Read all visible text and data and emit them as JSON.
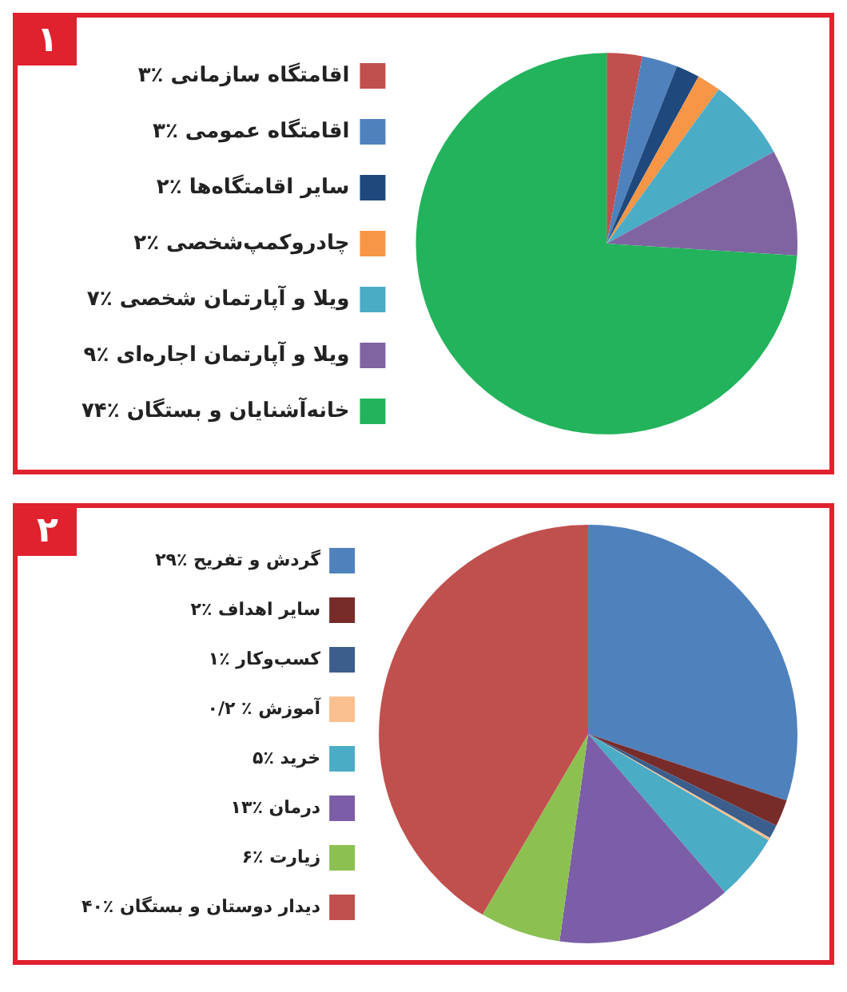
{
  "chart_data": [
    {
      "type": "pie",
      "title": "۱",
      "legend": "left",
      "categories": [
        "۳٪ اقامتگاه سازمانی",
        "۳٪ اقامتگاه عمومی",
        "۲٪ سایر اقامتگاه‌ها",
        "۲٪ چادروکمپ‌شخصی",
        "۷٪ ویلا و آپارتمان شخصی",
        "۹٪ ویلا و آپارتمان اجاره‌ای",
        "۷۴٪ خانه‌آشنایان و بستگان"
      ],
      "values": [
        3,
        3,
        2,
        2,
        7,
        9,
        74
      ],
      "colors": [
        "#c0504d",
        "#4f81bd",
        "#1f497d",
        "#f79646",
        "#4bacc6",
        "#8064a2",
        "#23b35c"
      ]
    },
    {
      "type": "pie",
      "title": "۲",
      "legend": "left",
      "categories": [
        "۲۹٪ گردش و تفریح",
        "۲٪ سایر اهداف",
        "۱٪ کسب‌وکار",
        "۰/۲ ٪ آموزش",
        "۵٪ خرید",
        "۱۳٪ درمان",
        "۶٪ زیارت",
        "۴۰٪ دیدار دوستان و بستگان"
      ],
      "values": [
        29,
        2,
        1,
        0.2,
        5,
        13,
        6,
        40
      ],
      "colors": [
        "#4f81bd",
        "#772c2a",
        "#3b5e8c",
        "#fac08f",
        "#4bacc6",
        "#7b5ea7",
        "#8cc152",
        "#c0504d"
      ]
    }
  ]
}
